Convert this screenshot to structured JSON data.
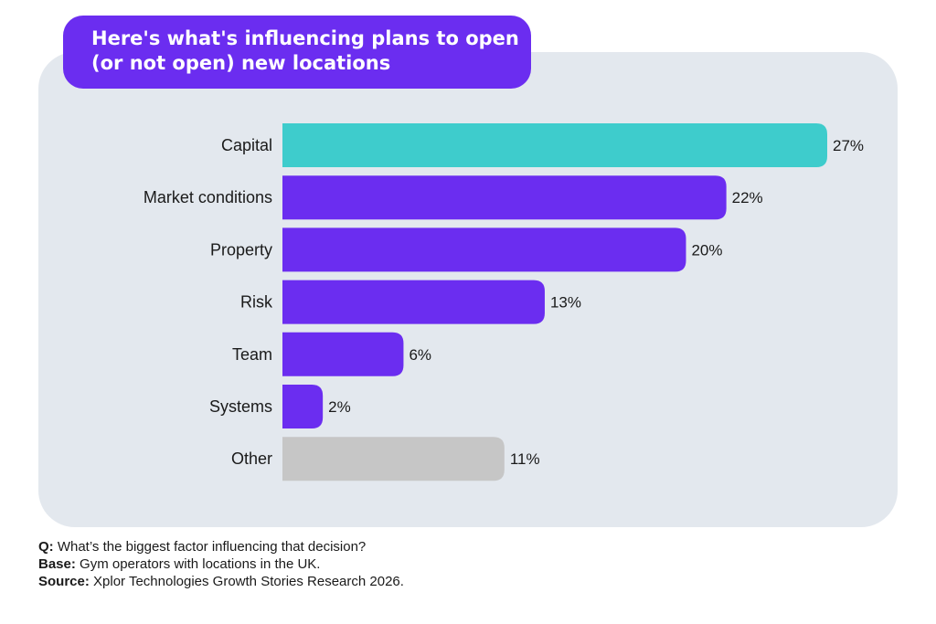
{
  "title_lines": [
    "Here's what's influencing plans to open",
    "(or not open) new locations"
  ],
  "chart_data": {
    "type": "bar",
    "orientation": "horizontal",
    "categories": [
      "Capital",
      "Market conditions",
      "Property",
      "Risk",
      "Team",
      "Systems",
      "Other"
    ],
    "values": [
      27,
      22,
      20,
      13,
      6,
      2,
      11
    ],
    "value_labels": [
      "27%",
      "22%",
      "20%",
      "13%",
      "6%",
      "2%",
      "11%"
    ],
    "unit": "%",
    "xlim": [
      0,
      27
    ],
    "grid": false,
    "bar_colors": [
      "#3ecccc",
      "#6b2df0",
      "#6b2df0",
      "#6b2df0",
      "#6b2df0",
      "#6b2df0",
      "#c6c6c6"
    ]
  },
  "footnotes": {
    "q": {
      "label": "Q:",
      "text": "What’s the biggest factor influencing that decision?"
    },
    "base": {
      "label": "Base:",
      "text": "Gym operators with locations in the UK."
    },
    "source": {
      "label": "Source:",
      "text": "Xplor Technologies Growth Stories Research 2026."
    }
  },
  "colors": {
    "accent": "#6b2df0",
    "highlight": "#3ecccc",
    "neutral": "#c6c6c6",
    "panel": "#e3e8ee"
  }
}
